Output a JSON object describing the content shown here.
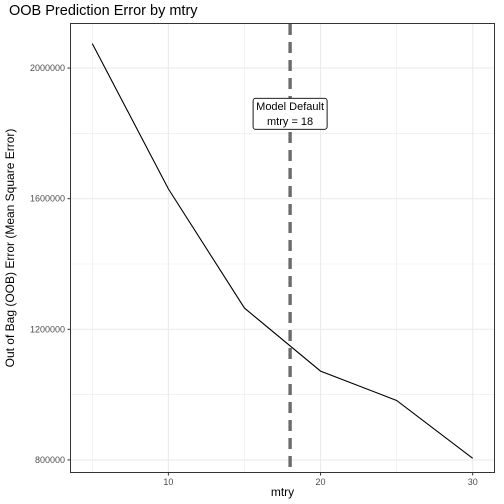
{
  "chart_data": {
    "type": "line",
    "title": "OOB Prediction Error by mtry",
    "xlabel": "mtry",
    "ylabel": "Out of Bag (OOB) Error (Mean Square Error)",
    "x": [
      5,
      10,
      15,
      20,
      25,
      30
    ],
    "y": [
      2075000,
      1630000,
      1265000,
      1072000,
      982000,
      805000
    ],
    "xlim": [
      3.6,
      31.4
    ],
    "ylim": [
      763000,
      2135000
    ],
    "x_ticks": [
      10,
      20,
      30
    ],
    "x_tick_labels": [
      "10",
      "20",
      "30"
    ],
    "y_ticks": [
      800000,
      1200000,
      1600000,
      2000000
    ],
    "y_tick_labels": [
      "800000",
      "1200000",
      "1600000",
      "2000000"
    ],
    "grid": true,
    "reference_line": {
      "x": 18,
      "style": "dashed",
      "color": "#6b6b6b"
    },
    "annotation": {
      "lines": [
        "Model Default",
        "mtry = 18"
      ],
      "x": 18,
      "y": 1860000
    },
    "line_color": "#000000",
    "grid_color": "#ebebeb",
    "panel_border_color": "#333333"
  }
}
